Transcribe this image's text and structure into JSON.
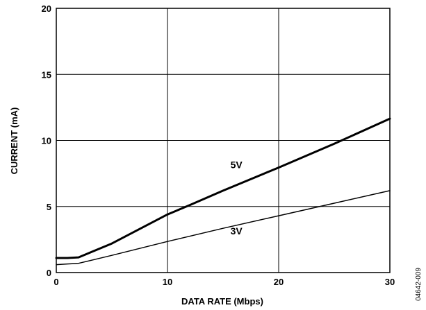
{
  "chart_data": {
    "type": "line",
    "title": "",
    "xlabel": "DATA RATE (Mbps)",
    "ylabel": "CURRENT (mA)",
    "xlim": [
      0,
      30
    ],
    "ylim": [
      0,
      20
    ],
    "x_ticks": [
      0,
      10,
      20,
      30
    ],
    "y_ticks": [
      0,
      5,
      10,
      15,
      20
    ],
    "grid": true,
    "series": [
      {
        "name": "5V",
        "line_width": "thick",
        "x": [
          0,
          0.5,
          1,
          2,
          5,
          10,
          12,
          15,
          20,
          25,
          30
        ],
        "y": [
          1.1,
          1.1,
          1.1,
          1.15,
          2.2,
          4.4,
          5.1,
          6.2,
          7.95,
          9.75,
          11.65
        ]
      },
      {
        "name": "3V",
        "line_width": "thin",
        "x": [
          0,
          1,
          2,
          5,
          10,
          15,
          20,
          25,
          30
        ],
        "y": [
          0.6,
          0.65,
          0.7,
          1.3,
          2.35,
          3.35,
          4.3,
          5.25,
          6.2
        ]
      }
    ],
    "series_label_positions": [
      {
        "name": "5V",
        "x": 16.2,
        "y": 7.9
      },
      {
        "name": "3V",
        "x": 16.2,
        "y": 2.9
      }
    ],
    "colors": {
      "line": "#000000",
      "grid": "#000000",
      "background": "#ffffff"
    }
  },
  "figure_code": "04642-009"
}
